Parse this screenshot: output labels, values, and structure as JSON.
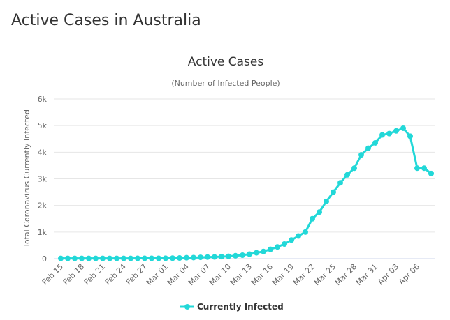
{
  "header": {
    "title": "Active Cases in Australia"
  },
  "chart_data": {
    "type": "line",
    "title": "Active Cases",
    "subtitle": "(Number of Infected People)",
    "y_label": "Total Coronavirus Currently Infected",
    "categories": [
      "Feb 15",
      null,
      null,
      "Feb 18",
      null,
      null,
      "Feb 21",
      null,
      null,
      "Feb 24",
      null,
      null,
      "Feb 27",
      null,
      null,
      "Mar 01",
      null,
      null,
      "Mar 04",
      null,
      null,
      "Mar 07",
      null,
      null,
      "Mar 10",
      null,
      null,
      "Mar 13",
      null,
      null,
      "Mar 16",
      null,
      null,
      "Mar 19",
      null,
      null,
      "Mar 22",
      null,
      null,
      "Mar 25",
      null,
      null,
      "Mar 28",
      null,
      null,
      "Mar 31",
      null,
      null,
      "Apr 03",
      null,
      null,
      "Apr 06",
      null,
      null
    ],
    "series": [
      {
        "name": "Currently Infected",
        "color": "#22d8d8",
        "values": [
          10,
          10,
          10,
          10,
          10,
          10,
          10,
          10,
          10,
          10,
          10,
          12,
          12,
          13,
          13,
          15,
          20,
          25,
          35,
          40,
          50,
          60,
          65,
          75,
          90,
          110,
          130,
          170,
          220,
          270,
          350,
          440,
          550,
          700,
          850,
          1000,
          1500,
          1750,
          2150,
          2500,
          2850,
          3150,
          3400,
          3900,
          4150,
          4350,
          4650,
          4700,
          4800,
          4900,
          4600,
          3400,
          3400,
          3200
        ]
      }
    ],
    "ylim": [
      0,
      6000
    ],
    "yticks": [
      0,
      {
        "value": 1000,
        "label": "1k"
      },
      {
        "value": 2000,
        "label": "2k"
      },
      {
        "value": 3000,
        "label": "3k"
      },
      {
        "value": 4000,
        "label": "4k"
      },
      {
        "value": 5000,
        "label": "5k"
      },
      {
        "value": 6000,
        "label": "6k"
      }
    ],
    "grid": true
  }
}
